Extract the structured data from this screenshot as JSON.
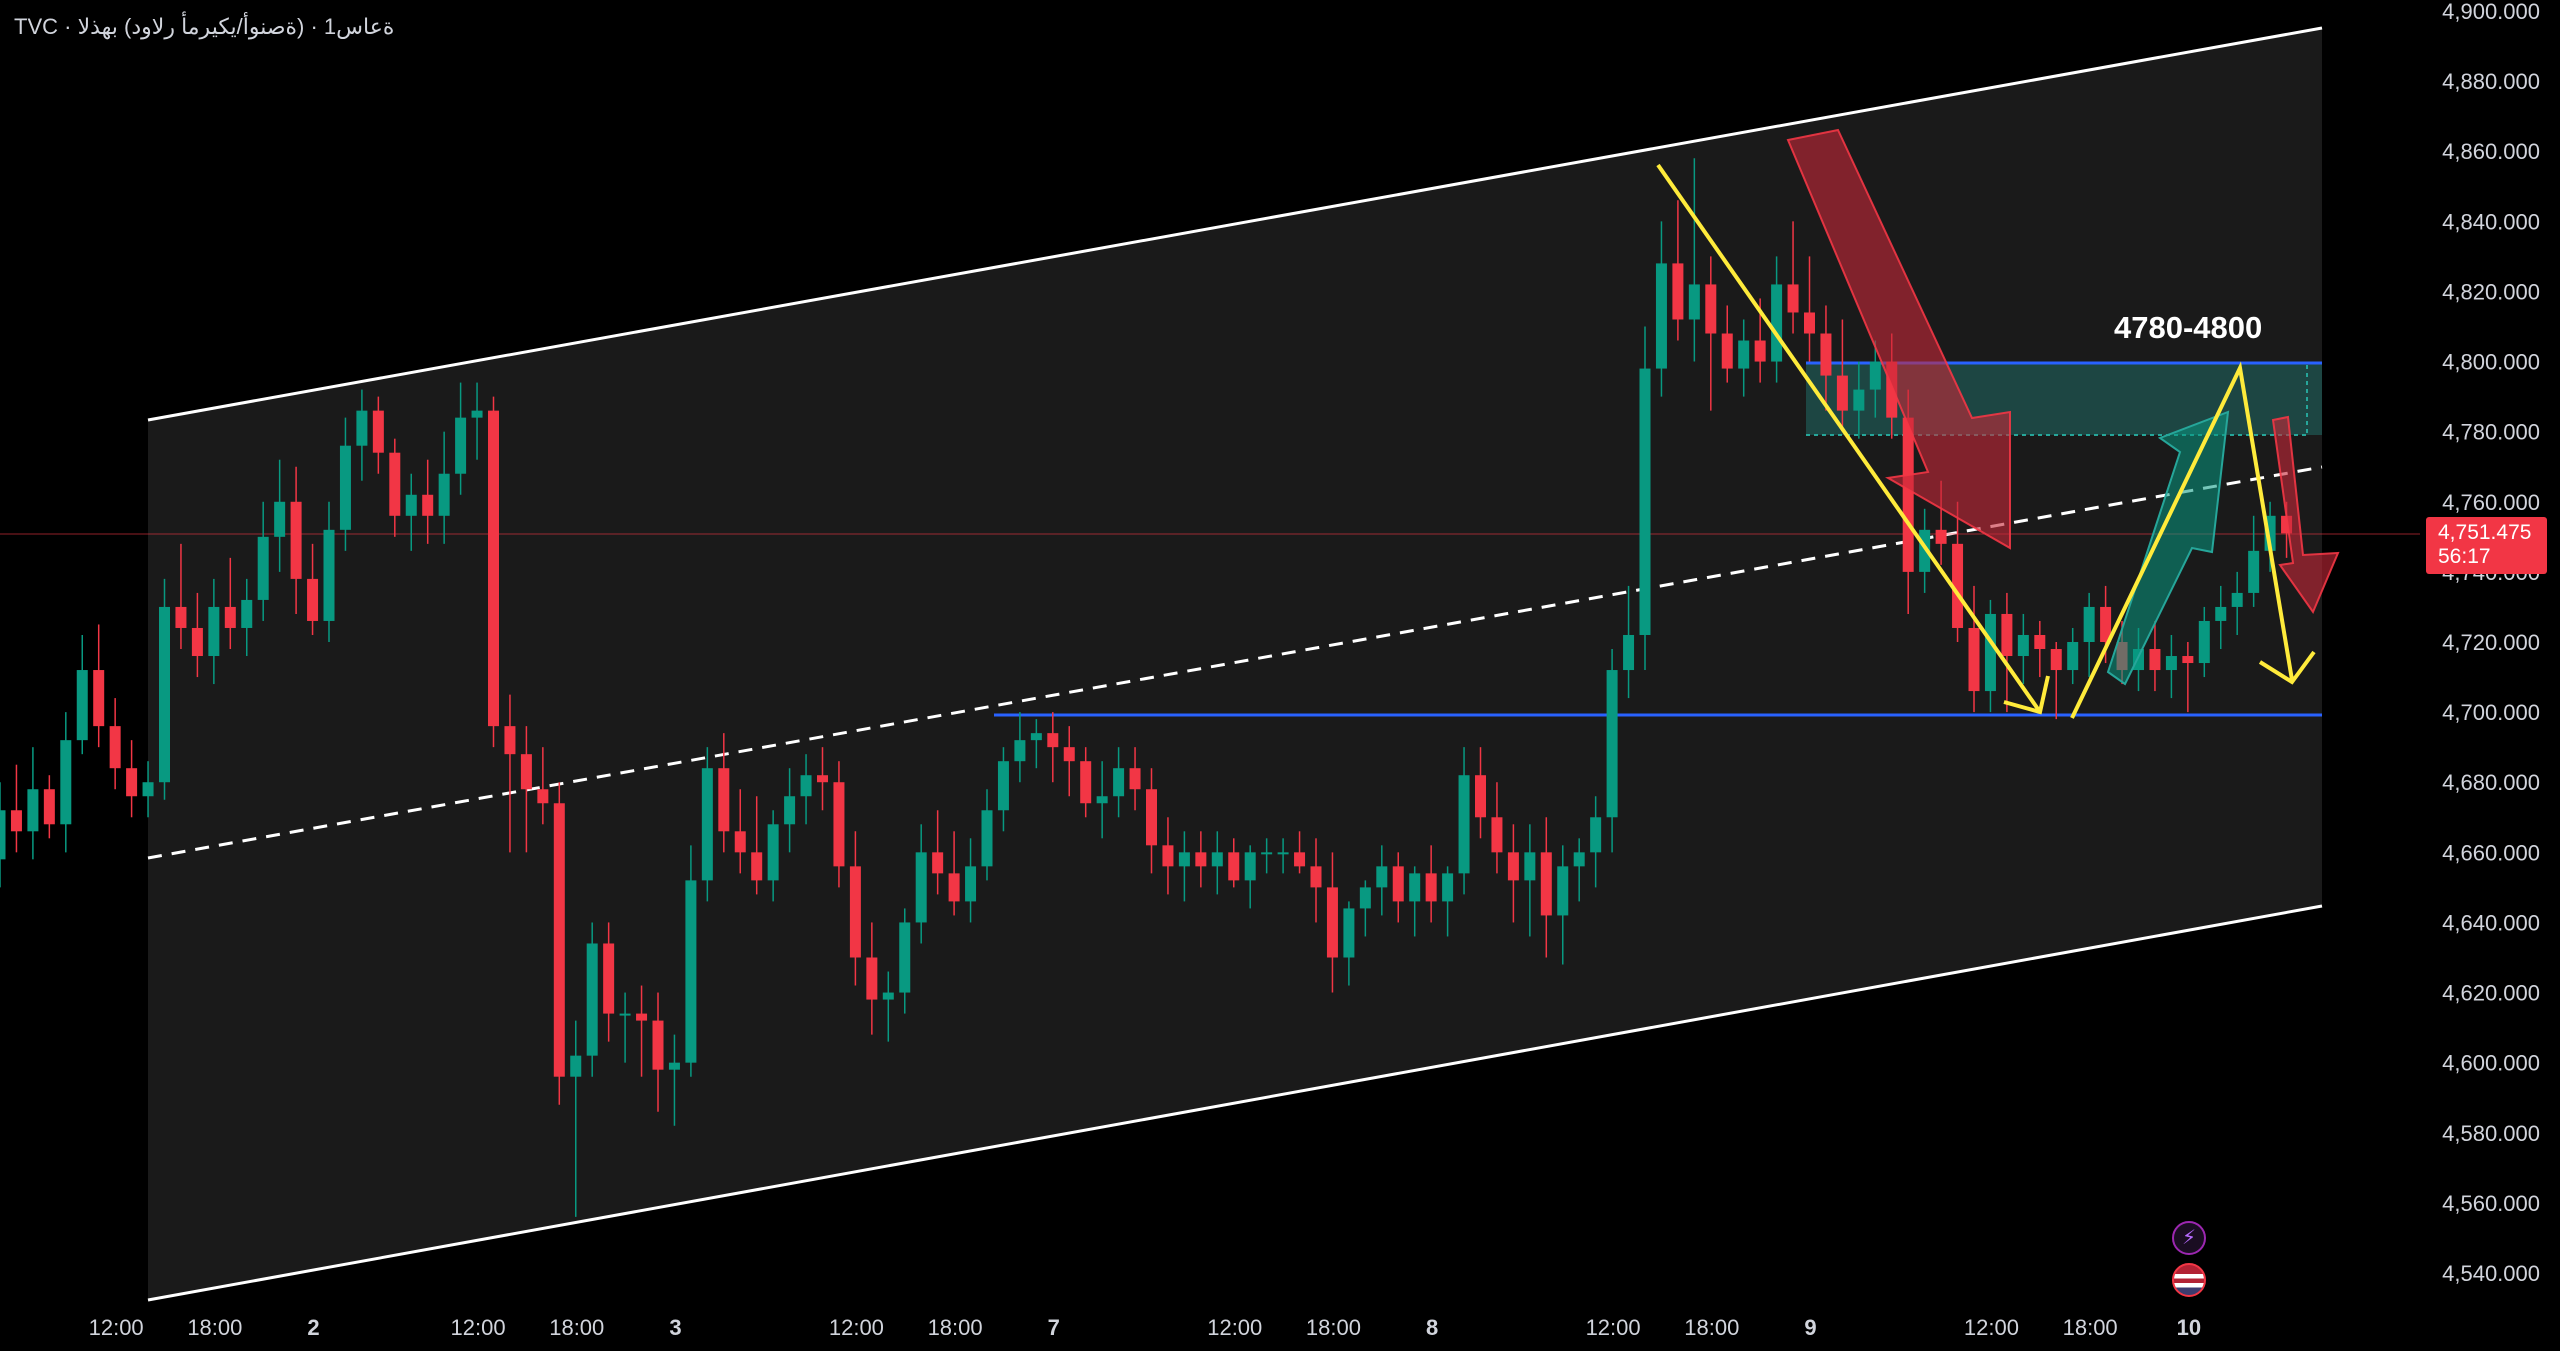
{
  "title": "TVC · ةعاس1 · (ةصنوأ/يكيرمأ رلاود) بهذلا",
  "current_price": {
    "value": "4,751.475",
    "countdown": "56:17",
    "color": "#f23645"
  },
  "zone_label": "4780-4800",
  "icons": {
    "flash": "lightning-icon",
    "flag": "us-flag-icon"
  },
  "colors": {
    "up": "#089981",
    "down": "#f23645",
    "channel": "#ffffff",
    "level": "#2962ff",
    "arrow_yellow": "#ffeb3b"
  },
  "chart_data": {
    "type": "candlestick",
    "ylim": [
      4530,
      4900
    ],
    "y_ticks": [
      "4,900.000",
      "4,880.000",
      "4,860.000",
      "4,840.000",
      "4,820.000",
      "4,800.000",
      "4,780.000",
      "4,760.000",
      "4,740.000",
      "4,720.000",
      "4,700.000",
      "4,680.000",
      "4,660.000",
      "4,640.000",
      "4,620.000",
      "4,600.000",
      "4,580.000",
      "4,560.000",
      "4,540.000"
    ],
    "y_tick_values": [
      4900,
      4880,
      4860,
      4840,
      4820,
      4800,
      4780,
      4760,
      4740,
      4720,
      4700,
      4680,
      4660,
      4640,
      4620,
      4600,
      4580,
      4560,
      4540
    ],
    "x_labels": [
      {
        "label": "12:00",
        "i": 7,
        "bold": false
      },
      {
        "label": "18:00",
        "i": 13,
        "bold": false
      },
      {
        "label": "2",
        "i": 19,
        "bold": true
      },
      {
        "label": "12:00",
        "i": 29,
        "bold": false
      },
      {
        "label": "18:00",
        "i": 35,
        "bold": false
      },
      {
        "label": "3",
        "i": 41,
        "bold": true
      },
      {
        "label": "12:00",
        "i": 52,
        "bold": false
      },
      {
        "label": "18:00",
        "i": 58,
        "bold": false
      },
      {
        "label": "7",
        "i": 64,
        "bold": true
      },
      {
        "label": "12:00",
        "i": 75,
        "bold": false
      },
      {
        "label": "18:00",
        "i": 81,
        "bold": false
      },
      {
        "label": "8",
        "i": 87,
        "bold": true
      },
      {
        "label": "12:00",
        "i": 98,
        "bold": false
      },
      {
        "label": "18:00",
        "i": 104,
        "bold": false
      },
      {
        "label": "9",
        "i": 110,
        "bold": true
      },
      {
        "label": "12:00",
        "i": 121,
        "bold": false
      },
      {
        "label": "18:00",
        "i": 127,
        "bold": false
      },
      {
        "label": "10",
        "i": 133,
        "bold": true
      }
    ],
    "candles": [
      [
        4658,
        4680,
        4650,
        4672
      ],
      [
        4672,
        4685,
        4660,
        4666
      ],
      [
        4666,
        4690,
        4658,
        4678
      ],
      [
        4678,
        4682,
        4664,
        4668
      ],
      [
        4668,
        4700,
        4660,
        4692
      ],
      [
        4692,
        4722,
        4688,
        4712
      ],
      [
        4712,
        4725,
        4690,
        4696
      ],
      [
        4696,
        4704,
        4678,
        4684
      ],
      [
        4684,
        4692,
        4670,
        4676
      ],
      [
        4676,
        4686,
        4670,
        4680
      ],
      [
        4680,
        4738,
        4675,
        4730
      ],
      [
        4730,
        4748,
        4718,
        4724
      ],
      [
        4724,
        4734,
        4710,
        4716
      ],
      [
        4716,
        4738,
        4708,
        4730
      ],
      [
        4730,
        4744,
        4718,
        4724
      ],
      [
        4724,
        4738,
        4716,
        4732
      ],
      [
        4732,
        4760,
        4726,
        4750
      ],
      [
        4750,
        4772,
        4740,
        4760
      ],
      [
        4760,
        4770,
        4728,
        4738
      ],
      [
        4738,
        4748,
        4722,
        4726
      ],
      [
        4726,
        4760,
        4720,
        4752
      ],
      [
        4752,
        4784,
        4746,
        4776
      ],
      [
        4776,
        4792,
        4766,
        4786
      ],
      [
        4786,
        4790,
        4768,
        4774
      ],
      [
        4774,
        4778,
        4750,
        4756
      ],
      [
        4756,
        4768,
        4746,
        4762
      ],
      [
        4762,
        4772,
        4748,
        4756
      ],
      [
        4756,
        4780,
        4748,
        4768
      ],
      [
        4768,
        4794,
        4762,
        4784
      ],
      [
        4784,
        4794,
        4772,
        4786
      ],
      [
        4786,
        4790,
        4690,
        4696
      ],
      [
        4696,
        4705,
        4660,
        4688
      ],
      [
        4688,
        4696,
        4660,
        4678
      ],
      [
        4678,
        4690,
        4668,
        4674
      ],
      [
        4674,
        4680,
        4588,
        4596
      ],
      [
        4596,
        4612,
        4556,
        4602
      ],
      [
        4602,
        4640,
        4596,
        4634
      ],
      [
        4634,
        4640,
        4606,
        4614
      ],
      [
        4614,
        4620,
        4600,
        4614
      ],
      [
        4614,
        4622,
        4596,
        4612
      ],
      [
        4612,
        4620,
        4586,
        4598
      ],
      [
        4598,
        4608,
        4582,
        4600
      ],
      [
        4600,
        4662,
        4596,
        4652
      ],
      [
        4652,
        4690,
        4646,
        4684
      ],
      [
        4684,
        4694,
        4660,
        4666
      ],
      [
        4666,
        4678,
        4654,
        4660
      ],
      [
        4660,
        4676,
        4648,
        4652
      ],
      [
        4652,
        4672,
        4646,
        4668
      ],
      [
        4668,
        4684,
        4660,
        4676
      ],
      [
        4676,
        4688,
        4668,
        4682
      ],
      [
        4682,
        4690,
        4672,
        4680
      ],
      [
        4680,
        4686,
        4650,
        4656
      ],
      [
        4656,
        4666,
        4622,
        4630
      ],
      [
        4630,
        4640,
        4608,
        4618
      ],
      [
        4618,
        4626,
        4606,
        4620
      ],
      [
        4620,
        4644,
        4614,
        4640
      ],
      [
        4640,
        4668,
        4634,
        4660
      ],
      [
        4660,
        4672,
        4648,
        4654
      ],
      [
        4654,
        4666,
        4642,
        4646
      ],
      [
        4646,
        4664,
        4640,
        4656
      ],
      [
        4656,
        4678,
        4652,
        4672
      ],
      [
        4672,
        4690,
        4666,
        4686
      ],
      [
        4686,
        4700,
        4680,
        4692
      ],
      [
        4692,
        4698,
        4684,
        4694
      ],
      [
        4694,
        4700,
        4680,
        4690
      ],
      [
        4690,
        4696,
        4676,
        4686
      ],
      [
        4686,
        4690,
        4670,
        4674
      ],
      [
        4674,
        4686,
        4664,
        4676
      ],
      [
        4676,
        4690,
        4670,
        4684
      ],
      [
        4684,
        4690,
        4672,
        4678
      ],
      [
        4678,
        4684,
        4654,
        4662
      ],
      [
        4662,
        4670,
        4648,
        4656
      ],
      [
        4656,
        4666,
        4646,
        4660
      ],
      [
        4660,
        4666,
        4650,
        4656
      ],
      [
        4656,
        4666,
        4648,
        4660
      ],
      [
        4660,
        4664,
        4650,
        4652
      ],
      [
        4652,
        4662,
        4644,
        4660
      ],
      [
        4660,
        4664,
        4654,
        4660
      ],
      [
        4660,
        4664,
        4654,
        4660
      ],
      [
        4660,
        4666,
        4654,
        4656
      ],
      [
        4656,
        4664,
        4640,
        4650
      ],
      [
        4650,
        4660,
        4620,
        4630
      ],
      [
        4630,
        4646,
        4622,
        4644
      ],
      [
        4644,
        4652,
        4636,
        4650
      ],
      [
        4650,
        4662,
        4642,
        4656
      ],
      [
        4656,
        4660,
        4640,
        4646
      ],
      [
        4646,
        4656,
        4636,
        4654
      ],
      [
        4654,
        4662,
        4640,
        4646
      ],
      [
        4646,
        4656,
        4636,
        4654
      ],
      [
        4654,
        4690,
        4648,
        4682
      ],
      [
        4682,
        4690,
        4664,
        4670
      ],
      [
        4670,
        4680,
        4654,
        4660
      ],
      [
        4660,
        4668,
        4640,
        4652
      ],
      [
        4652,
        4668,
        4636,
        4660
      ],
      [
        4660,
        4670,
        4630,
        4642
      ],
      [
        4642,
        4662,
        4628,
        4656
      ],
      [
        4656,
        4664,
        4646,
        4660
      ],
      [
        4660,
        4676,
        4650,
        4670
      ],
      [
        4670,
        4718,
        4660,
        4712
      ],
      [
        4712,
        4736,
        4704,
        4722
      ],
      [
        4722,
        4810,
        4712,
        4798
      ],
      [
        4798,
        4840,
        4790,
        4828
      ],
      [
        4828,
        4846,
        4806,
        4812
      ],
      [
        4812,
        4858,
        4800,
        4822
      ],
      [
        4822,
        4830,
        4786,
        4808
      ],
      [
        4808,
        4816,
        4794,
        4798
      ],
      [
        4798,
        4812,
        4790,
        4806
      ],
      [
        4806,
        4818,
        4794,
        4800
      ],
      [
        4800,
        4830,
        4794,
        4822
      ],
      [
        4822,
        4840,
        4808,
        4814
      ],
      [
        4814,
        4830,
        4800,
        4808
      ],
      [
        4808,
        4816,
        4786,
        4796
      ],
      [
        4796,
        4812,
        4780,
        4786
      ],
      [
        4786,
        4800,
        4778,
        4792
      ],
      [
        4792,
        4806,
        4784,
        4800
      ],
      [
        4800,
        4808,
        4778,
        4784
      ],
      [
        4784,
        4792,
        4728,
        4740
      ],
      [
        4740,
        4758,
        4734,
        4752
      ],
      [
        4752,
        4766,
        4742,
        4748
      ],
      [
        4748,
        4760,
        4720,
        4724
      ],
      [
        4724,
        4736,
        4700,
        4706
      ],
      [
        4706,
        4732,
        4700,
        4728
      ],
      [
        4728,
        4734,
        4700,
        4716
      ],
      [
        4716,
        4728,
        4708,
        4722
      ],
      [
        4722,
        4726,
        4710,
        4718
      ],
      [
        4718,
        4720,
        4698,
        4712
      ],
      [
        4712,
        4724,
        4708,
        4720
      ],
      [
        4720,
        4734,
        4710,
        4730
      ],
      [
        4730,
        4736,
        4714,
        4720
      ],
      [
        4720,
        4726,
        4708,
        4712
      ],
      [
        4712,
        4724,
        4706,
        4718
      ],
      [
        4718,
        4726,
        4706,
        4712
      ],
      [
        4712,
        4722,
        4704,
        4716
      ],
      [
        4716,
        4720,
        4700,
        4714
      ],
      [
        4714,
        4730,
        4710,
        4726
      ],
      [
        4726,
        4736,
        4718,
        4730
      ],
      [
        4730,
        4740,
        4722,
        4734
      ],
      [
        4734,
        4756,
        4730,
        4746
      ],
      [
        4746,
        4760,
        4740,
        4756
      ],
      [
        4756,
        4760,
        4744,
        4751
      ]
    ]
  }
}
